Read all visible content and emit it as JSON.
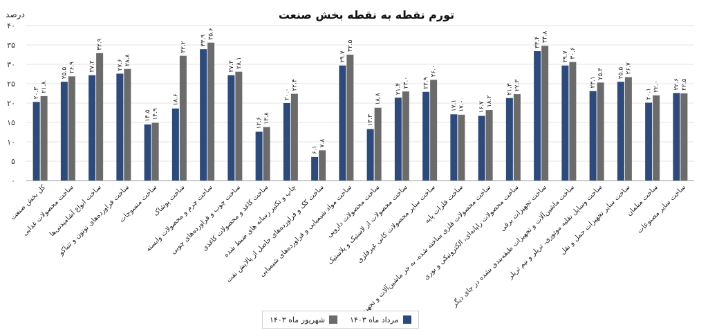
{
  "chart_data": {
    "type": "bar",
    "title": "تورم نقطه به نقطه بخش صنعت",
    "ylabel": "درصد",
    "ylim": [
      0,
      40
    ],
    "ytick_labels": [
      "۰",
      "۵",
      "۱۰",
      "۱۵",
      "۲۰",
      "۲۵",
      "۳۰",
      "۳۵",
      "۴۰"
    ],
    "grid": true,
    "legend_position": "bottom-center",
    "categories": [
      "کل بخش صنعت",
      "ساخت محصولات غذایی",
      "ساخت انواع آشامیدنی‌ها",
      "ساخت فراورده‌های توتون و تنباکو",
      "ساخت منسوجات",
      "ساخت پوشاک",
      "ساخت چرم و محصولات وابسته",
      "ساخت چوب و فراورده‌های چوبی",
      "ساخت کاغذ و محصولات کاغذی",
      "چاپ و تکثیر رسانه های ضبط شده",
      "ساخت کک و فراورده‌های حاصل از پالایش نفت",
      "ساخت مواد شیمیایی و فراورده‌های شیمیایی",
      "ساخت محصولات دارویی",
      "ساخت محصولات از لاستیک و پلاستیک",
      "ساخت سایر محصولات کانی غیرفلزی",
      "ساخت فلزات پایه",
      "ساخت محصولات فلزی ساخته شده، به جز ماشین‌آلات و تجهیزات",
      "ساخت محصولات رایانه‌ای، الکترونیکی و نوری",
      "ساخت تجهیزات برقی",
      "ساخت ماشین‌آلات و تجهیزات طبقه‌بندی نشده در جای دیگر",
      "ساخت وسایل نقلیه موتوری، تریلر و نیم تریلر",
      "ساخت سایر تجهیزات حمل و نقل",
      "ساخت مبلمان",
      "ساخت سایر مصنوعات"
    ],
    "series": [
      {
        "name": "مرداد ماه ۱۴۰۳",
        "color": "#2e4a7a",
        "values": [
          20.3,
          25.5,
          27.2,
          27.6,
          14.5,
          18.6,
          33.9,
          27.2,
          12.6,
          20.0,
          6.1,
          29.7,
          13.3,
          21.4,
          22.9,
          17.1,
          16.7,
          21.3,
          33.4,
          29.7,
          23.1,
          25.5,
          20.1,
          22.6
        ],
        "labels": [
          "۲۰.۳",
          "۲۵.۵",
          "۲۷.۲",
          "۲۷.۶",
          "۱۴.۵",
          "۱۸.۶",
          "۳۳.۹",
          "۲۷.۲",
          "۱۲.۶",
          "۲۰.۰",
          "۶.۱",
          "۲۹.۷",
          "۱۳.۳",
          "۲۱.۴",
          "۲۲.۹",
          "۱۷.۱",
          "۱۶.۷",
          "۲۱.۳",
          "۳۳.۴",
          "۲۹.۷",
          "۲۳.۱",
          "۲۵.۵",
          "۲۰.۱",
          "۲۲.۶"
        ]
      },
      {
        "name": "شهریور ماه ۱۴۰۳",
        "color": "#6b6b6b",
        "values": [
          21.8,
          26.9,
          32.9,
          28.8,
          14.9,
          32.2,
          35.6,
          28.1,
          13.8,
          22.4,
          7.8,
          32.5,
          18.8,
          23.0,
          26.0,
          17.0,
          18.2,
          22.3,
          34.8,
          30.6,
          25.3,
          26.7,
          22.0,
          22.5
        ],
        "labels": [
          "۲۱.۸",
          "۲۶.۹",
          "۳۲.۹",
          "۲۸.۸",
          "۱۴.۹",
          "۳۲.۲",
          "۳۵.۶",
          "۲۸.۱",
          "۱۳.۸",
          "۲۲.۴",
          "۷.۸",
          "۳۲.۵",
          "۱۸.۸",
          "۲۳.۰",
          "۲۶.۰",
          "۱۷.۰",
          "۱۸.۲",
          "۲۲.۳",
          "۳۴.۸",
          "۳۰.۶",
          "۲۵.۳",
          "۲۶.۷",
          "۲۲.۰",
          "۲۲.۵"
        ]
      }
    ]
  }
}
